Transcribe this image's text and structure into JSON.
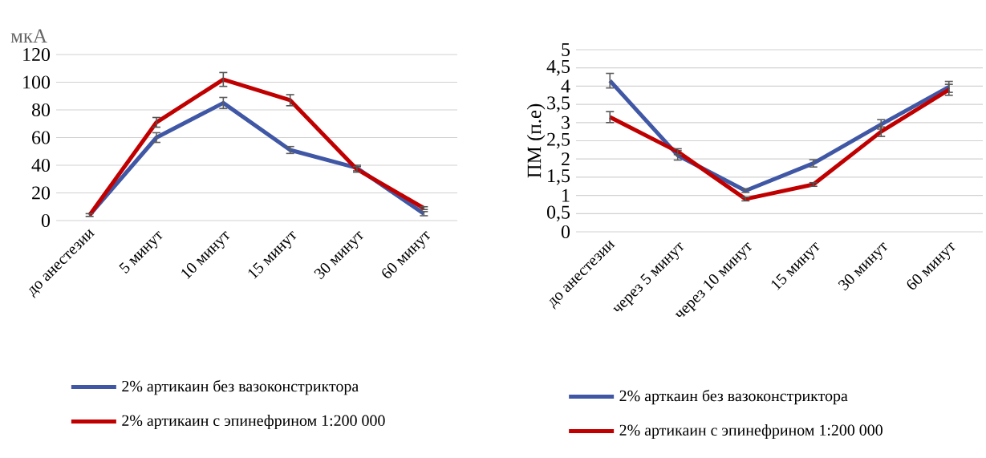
{
  "chart_data": [
    {
      "type": "line",
      "ylabel": "мкА",
      "categories": [
        "до анестезии",
        "5 минут",
        "10 минут",
        "15 минут",
        "30 минут",
        "60 минут"
      ],
      "series": [
        {
          "name": "2% артикаин без вазоконстриктора",
          "color": "#3f57a5",
          "values": [
            4,
            60,
            85,
            51,
            38,
            5
          ],
          "errors": [
            null,
            3.5,
            4,
            2.5,
            2,
            1.5
          ]
        },
        {
          "name": "2% артикаин с эпинефрином 1:200 000",
          "color": "#c00000",
          "values": [
            4,
            71,
            102,
            87,
            37,
            9
          ],
          "errors": [
            1,
            3.5,
            5,
            4,
            2,
            1
          ]
        }
      ],
      "ylim": [
        0,
        120
      ],
      "yticks": [
        0,
        20,
        40,
        60,
        80,
        100,
        120
      ],
      "grid": "y",
      "legend": "bottom"
    },
    {
      "type": "line",
      "ylabel": "ПМ (п.е)",
      "categories": [
        "до анестезии",
        "через 5 минут",
        "через 10 минут",
        "15 минут",
        "30 минут",
        "60 минут"
      ],
      "series": [
        {
          "name": "2% арткаин без вазоконстриктора",
          "color": "#3f57a5",
          "values": [
            4.15,
            2.1,
            1.13,
            1.88,
            2.95,
            3.98
          ],
          "errors": [
            0.2,
            0.13,
            0.05,
            0.1,
            0.13,
            0.15
          ]
        },
        {
          "name": "2% артикаин с эпинефрином 1:200 000",
          "color": "#c00000",
          "values": [
            3.15,
            2.2,
            0.9,
            1.3,
            2.75,
            3.9
          ],
          "errors": [
            0.15,
            0.08,
            0.05,
            0.05,
            0.13,
            0.15
          ]
        }
      ],
      "ylim": [
        0,
        5
      ],
      "yticks": [
        0,
        {
          "value": 0.5,
          "label": "0,5"
        },
        1,
        {
          "value": 1.5,
          "label": "1,5"
        },
        2,
        {
          "value": 2.5,
          "label": "2,5"
        },
        3,
        {
          "value": 3.5,
          "label": "3,5"
        },
        4,
        {
          "value": 4.5,
          "label": "4,5"
        },
        5
      ],
      "grid": "y",
      "legend": "bottom"
    }
  ]
}
